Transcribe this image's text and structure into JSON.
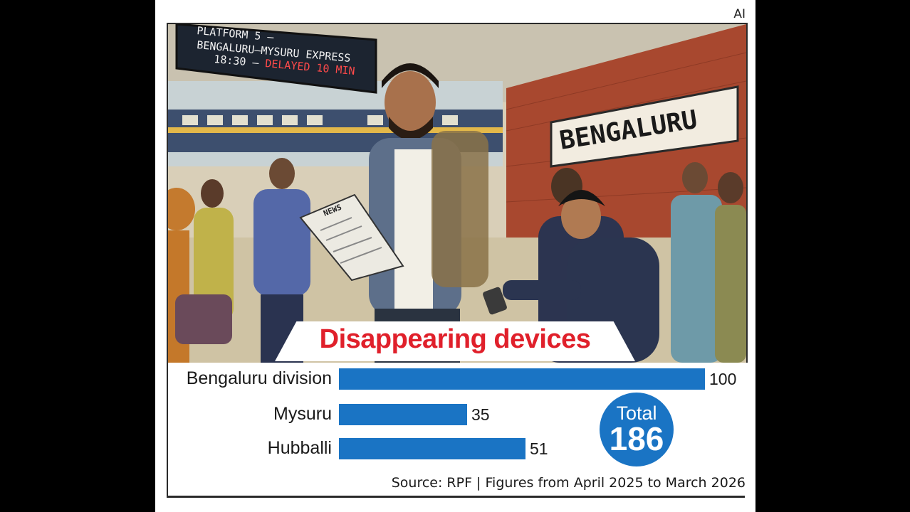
{
  "badge": "AI",
  "illustration": {
    "board_lines": [
      "PLATFORM 5 –",
      "BENGALURU–MYSURU EXPRESS",
      "18:30 – "
    ],
    "board_delay": "DELAYED 10 MIN",
    "station_sign": "BENGALURU",
    "newspaper_label": "NEWS"
  },
  "chart_data": {
    "type": "bar",
    "orientation": "horizontal",
    "title": "Disappearing devices",
    "categories": [
      "Bengaluru division",
      "Mysuru",
      "Hubballi"
    ],
    "values": [
      100,
      35,
      51
    ],
    "xlim": [
      0,
      100
    ],
    "grid": false,
    "bar_color": "#1a74c4",
    "total_label": "Total",
    "total_value": "186",
    "source": "Source: RPF | Figures from April 2025 to March 2026"
  },
  "colors": {
    "title": "#e0202b",
    "bar": "#1a74c4",
    "delayed": "#e0202b"
  }
}
